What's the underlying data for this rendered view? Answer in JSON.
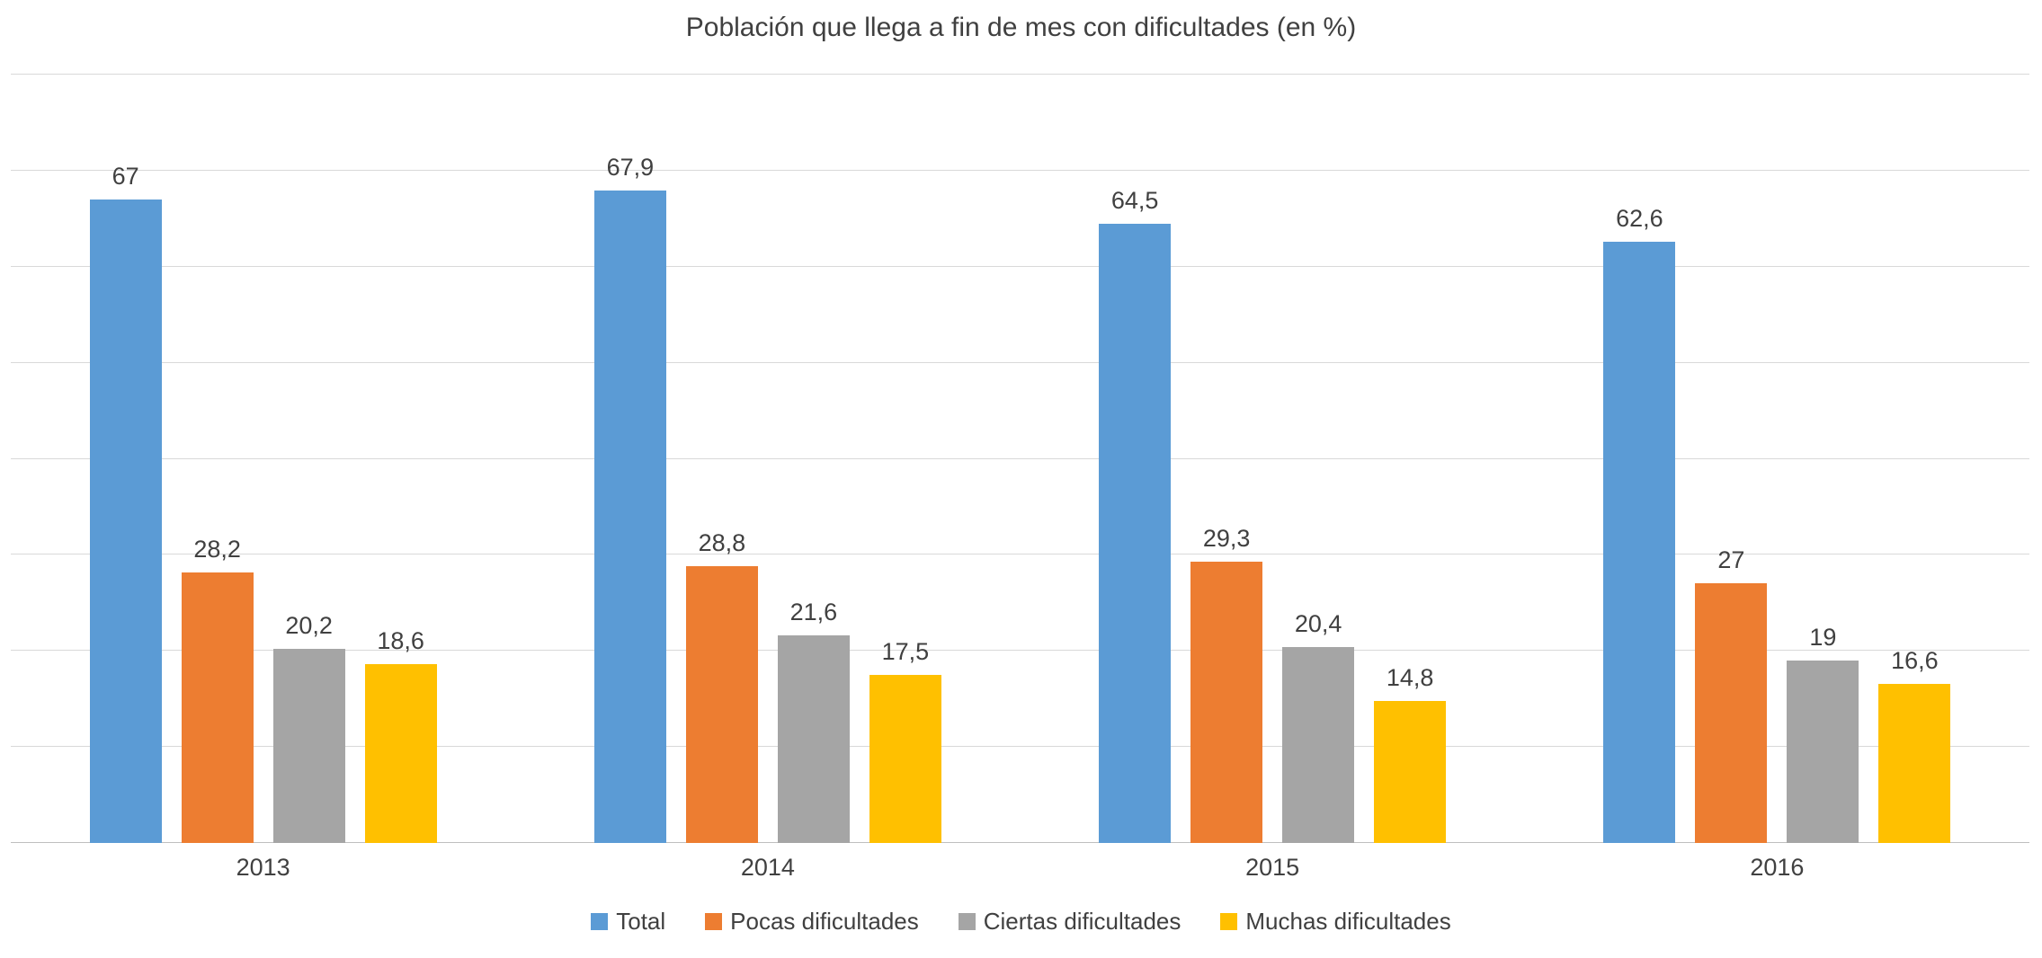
{
  "chart_data": {
    "type": "bar",
    "title": "Población que llega a fin de mes con dificultades (en %)",
    "categories": [
      "2013",
      "2014",
      "2015",
      "2016"
    ],
    "series": [
      {
        "name": "Total",
        "color": "#5B9BD5",
        "values": [
          67,
          67.9,
          64.5,
          62.6
        ],
        "labels": [
          "67",
          "67,9",
          "64,5",
          "62,6"
        ]
      },
      {
        "name": "Pocas dificultades",
        "color": "#ED7D31",
        "values": [
          28.2,
          28.8,
          29.3,
          27
        ],
        "labels": [
          "28,2",
          "28,8",
          "29,3",
          "27"
        ]
      },
      {
        "name": "Ciertas dificultades",
        "color": "#A5A5A5",
        "values": [
          20.2,
          21.6,
          20.4,
          19
        ],
        "labels": [
          "20,2",
          "21,6",
          "20,4",
          "19"
        ]
      },
      {
        "name": "Muchas dificultades",
        "color": "#FFC000",
        "values": [
          18.6,
          17.5,
          14.8,
          16.6
        ],
        "labels": [
          "18,6",
          "17,5",
          "14,8",
          "16,6"
        ]
      }
    ],
    "xlabel": "",
    "ylabel": "",
    "ylim": [
      0,
      80
    ],
    "grid_step": 10,
    "grid": true,
    "legend_position": "bottom",
    "background": "#FFFFFF",
    "gridline_color": "#D9D9D9",
    "text_color": "#404040"
  }
}
